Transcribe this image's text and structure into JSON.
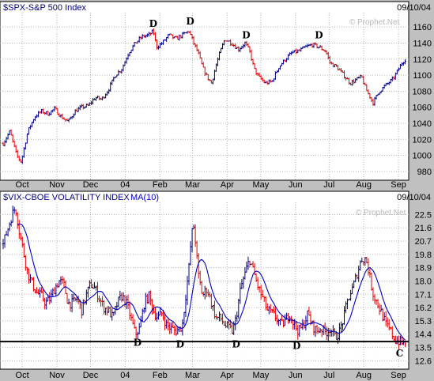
{
  "watermark": "Prophet.Net",
  "chart_data": [
    {
      "type": "bar",
      "panel": "top",
      "title": "$SPX-S&P 500 Index",
      "date": "09/10/04",
      "ylim": [
        975,
        1170
      ],
      "yticks": [
        980,
        1000,
        1020,
        1040,
        1060,
        1080,
        1100,
        1120,
        1140,
        1160
      ],
      "months": [
        {
          "label": "Oct",
          "day": 17
        },
        {
          "label": "Nov",
          "day": 48
        },
        {
          "label": "Dec",
          "day": 78
        },
        {
          "label": "04",
          "day": 109
        },
        {
          "label": "Feb",
          "day": 140
        },
        {
          "label": "Mar",
          "day": 169
        },
        {
          "label": "Apr",
          "day": 200
        },
        {
          "label": "May",
          "day": 230
        },
        {
          "label": "Jun",
          "day": 261
        },
        {
          "label": "Jul",
          "day": 291
        },
        {
          "label": "Aug",
          "day": 322
        },
        {
          "label": "Sep",
          "day": 353
        }
      ],
      "series": [
        {
          "name": "SPX",
          "points": [
            [
              0,
              1015
            ],
            [
              6,
              1030
            ],
            [
              12,
              1000
            ],
            [
              16,
              992
            ],
            [
              22,
              1030
            ],
            [
              28,
              1048
            ],
            [
              34,
              1055
            ],
            [
              40,
              1052
            ],
            [
              46,
              1058
            ],
            [
              52,
              1048
            ],
            [
              58,
              1042
            ],
            [
              64,
              1055
            ],
            [
              70,
              1060
            ],
            [
              76,
              1062
            ],
            [
              82,
              1072
            ],
            [
              88,
              1070
            ],
            [
              94,
              1082
            ],
            [
              100,
              1100
            ],
            [
              106,
              1108
            ],
            [
              112,
              1128
            ],
            [
              118,
              1140
            ],
            [
              124,
              1148
            ],
            [
              130,
              1150
            ],
            [
              134,
              1155
            ],
            [
              137,
              1135
            ],
            [
              142,
              1140
            ],
            [
              148,
              1150
            ],
            [
              154,
              1145
            ],
            [
              160,
              1150
            ],
            [
              166,
              1155
            ],
            [
              170,
              1140
            ],
            [
              174,
              1128
            ],
            [
              178,
              1110
            ],
            [
              182,
              1098
            ],
            [
              186,
              1090
            ],
            [
              190,
              1112
            ],
            [
              194,
              1130
            ],
            [
              198,
              1145
            ],
            [
              204,
              1140
            ],
            [
              210,
              1132
            ],
            [
              216,
              1140
            ],
            [
              220,
              1130
            ],
            [
              224,
              1108
            ],
            [
              228,
              1098
            ],
            [
              234,
              1090
            ],
            [
              240,
              1092
            ],
            [
              246,
              1110
            ],
            [
              252,
              1120
            ],
            [
              258,
              1128
            ],
            [
              264,
              1130
            ],
            [
              270,
              1135
            ],
            [
              276,
              1138
            ],
            [
              282,
              1135
            ],
            [
              288,
              1130
            ],
            [
              292,
              1115
            ],
            [
              298,
              1110
            ],
            [
              304,
              1100
            ],
            [
              310,
              1090
            ],
            [
              316,
              1095
            ],
            [
              320,
              1098
            ],
            [
              324,
              1082
            ],
            [
              328,
              1072
            ],
            [
              330,
              1065
            ],
            [
              336,
              1080
            ],
            [
              342,
              1088
            ],
            [
              348,
              1095
            ],
            [
              352,
              1105
            ],
            [
              356,
              1115
            ],
            [
              359,
              1120
            ]
          ]
        }
      ],
      "annotations": [
        {
          "text": "D",
          "day": 134,
          "value": 1160
        },
        {
          "text": "D",
          "day": 167,
          "value": 1163
        },
        {
          "text": "D",
          "day": 217,
          "value": 1146
        },
        {
          "text": "D",
          "day": 282,
          "value": 1146
        }
      ]
    },
    {
      "type": "bar",
      "panel": "bottom",
      "title": "$VIX-CBOE VOLATILITY INDEX",
      "overlay_label": "MA(10)",
      "date": "09/10/04",
      "ylim": [
        12.3,
        23.0
      ],
      "yticks": [
        12.6,
        13.5,
        14.4,
        15.3,
        16.2,
        17.1,
        18.0,
        18.9,
        19.8,
        20.7,
        21.6,
        22.5
      ],
      "support_line": 13.9,
      "series": [
        {
          "name": "VIX",
          "points": [
            [
              0,
              20.5
            ],
            [
              4,
              21.5
            ],
            [
              8,
              22.5
            ],
            [
              11,
              23.0
            ],
            [
              14,
              21.5
            ],
            [
              18,
              20.0
            ],
            [
              22,
              18.5
            ],
            [
              26,
              17.8
            ],
            [
              30,
              17.2
            ],
            [
              34,
              17.0
            ],
            [
              38,
              16.5
            ],
            [
              42,
              16.8
            ],
            [
              46,
              17.5
            ],
            [
              50,
              18.0
            ],
            [
              54,
              17.8
            ],
            [
              58,
              16.5
            ],
            [
              62,
              16.5
            ],
            [
              66,
              16.8
            ],
            [
              70,
              16.0
            ],
            [
              74,
              17.0
            ],
            [
              78,
              17.8
            ],
            [
              82,
              17.5
            ],
            [
              86,
              16.8
            ],
            [
              90,
              16.2
            ],
            [
              94,
              16.0
            ],
            [
              98,
              15.5
            ],
            [
              102,
              16.5
            ],
            [
              106,
              17.0
            ],
            [
              110,
              16.5
            ],
            [
              114,
              15.5
            ],
            [
              118,
              14.4
            ],
            [
              122,
              14.8
            ],
            [
              126,
              16.5
            ],
            [
              130,
              17.0
            ],
            [
              134,
              16.0
            ],
            [
              138,
              15.5
            ],
            [
              142,
              15.8
            ],
            [
              146,
              15.0
            ],
            [
              150,
              14.8
            ],
            [
              154,
              14.6
            ],
            [
              158,
              14.8
            ],
            [
              160,
              15.0
            ],
            [
              163,
              17.0
            ],
            [
              166,
              19.0
            ],
            [
              168,
              21.0
            ],
            [
              170,
              21.8
            ],
            [
              172,
              20.5
            ],
            [
              174,
              18.5
            ],
            [
              178,
              17.0
            ],
            [
              182,
              17.5
            ],
            [
              186,
              16.5
            ],
            [
              190,
              15.5
            ],
            [
              194,
              15.5
            ],
            [
              198,
              15.0
            ],
            [
              202,
              14.8
            ],
            [
              205,
              14.6
            ],
            [
              208,
              15.5
            ],
            [
              212,
              17.5
            ],
            [
              216,
              18.5
            ],
            [
              220,
              19.5
            ],
            [
              224,
              18.5
            ],
            [
              228,
              17.5
            ],
            [
              232,
              16.8
            ],
            [
              236,
              16.0
            ],
            [
              240,
              15.8
            ],
            [
              244,
              15.5
            ],
            [
              248,
              15.0
            ],
            [
              252,
              15.3
            ],
            [
              256,
              15.8
            ],
            [
              260,
              15.0
            ],
            [
              264,
              14.6
            ],
            [
              268,
              15.0
            ],
            [
              272,
              15.8
            ],
            [
              276,
              15.0
            ],
            [
              280,
              14.6
            ],
            [
              284,
              14.8
            ],
            [
              288,
              14.5
            ],
            [
              292,
              14.8
            ],
            [
              296,
              14.2
            ],
            [
              300,
              14.5
            ],
            [
              304,
              15.5
            ],
            [
              308,
              16.8
            ],
            [
              312,
              17.5
            ],
            [
              316,
              18.5
            ],
            [
              320,
              19.5
            ],
            [
              324,
              19.5
            ],
            [
              326,
              18.8
            ],
            [
              330,
              17.2
            ],
            [
              334,
              16.5
            ],
            [
              338,
              15.8
            ],
            [
              342,
              15.0
            ],
            [
              346,
              14.6
            ],
            [
              350,
              14.0
            ],
            [
              354,
              13.9
            ],
            [
              357,
              13.7
            ],
            [
              359,
              13.9
            ]
          ]
        }
      ],
      "annotations": [
        {
          "text": "D",
          "day": 120,
          "value": 13.6
        },
        {
          "text": "D",
          "day": 158,
          "value": 13.5
        },
        {
          "text": "D",
          "day": 208,
          "value": 13.5
        },
        {
          "text": "D",
          "day": 262,
          "value": 13.4
        },
        {
          "text": "C",
          "day": 354,
          "value": 12.9
        }
      ]
    }
  ]
}
